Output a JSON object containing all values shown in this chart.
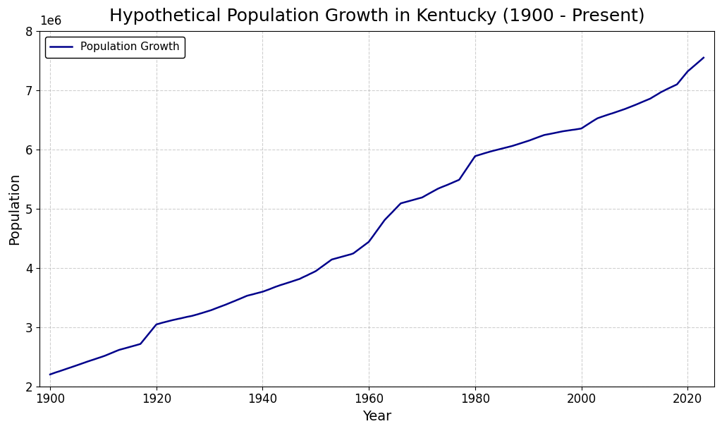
{
  "title": "Hypothetical Population Growth in Kentucky (1900 - Present)",
  "xlabel": "Year",
  "ylabel": "Population",
  "legend_label": "Population Growth",
  "line_color": "#00008B",
  "line_width": 1.8,
  "background_color": "#ffffff",
  "grid_color": "#b0b0b0",
  "grid_style": "--",
  "xlim": [
    1898,
    2025
  ],
  "ylim": [
    2000000,
    8000000
  ],
  "key_years": [
    1900,
    1907,
    1910,
    1913,
    1917,
    1920,
    1923,
    1927,
    1930,
    1933,
    1937,
    1940,
    1943,
    1947,
    1950,
    1953,
    1957,
    1960,
    1963,
    1966,
    1970,
    1973,
    1977,
    1980,
    1983,
    1987,
    1990,
    1993,
    1997,
    2000,
    2003,
    2006,
    2008,
    2010,
    2013,
    2015,
    2018,
    2020,
    2023
  ],
  "key_pop": [
    2200000,
    2420000,
    2510000,
    2620000,
    2720000,
    3050000,
    3120000,
    3200000,
    3280000,
    3380000,
    3530000,
    3600000,
    3700000,
    3820000,
    3950000,
    4150000,
    4250000,
    4450000,
    4820000,
    5100000,
    5200000,
    5350000,
    5500000,
    5900000,
    5980000,
    6070000,
    6150000,
    6250000,
    6320000,
    6360000,
    6530000,
    6620000,
    6680000,
    6750000,
    6860000,
    6970000,
    7100000,
    7320000,
    7550000
  ],
  "title_fontsize": 18,
  "axis_label_fontsize": 14,
  "tick_fontsize": 12,
  "legend_fontsize": 11,
  "xticks": [
    1900,
    1920,
    1940,
    1960,
    1980,
    2000,
    2020
  ],
  "yticks": [
    2000000,
    3000000,
    4000000,
    5000000,
    6000000,
    7000000,
    8000000
  ]
}
